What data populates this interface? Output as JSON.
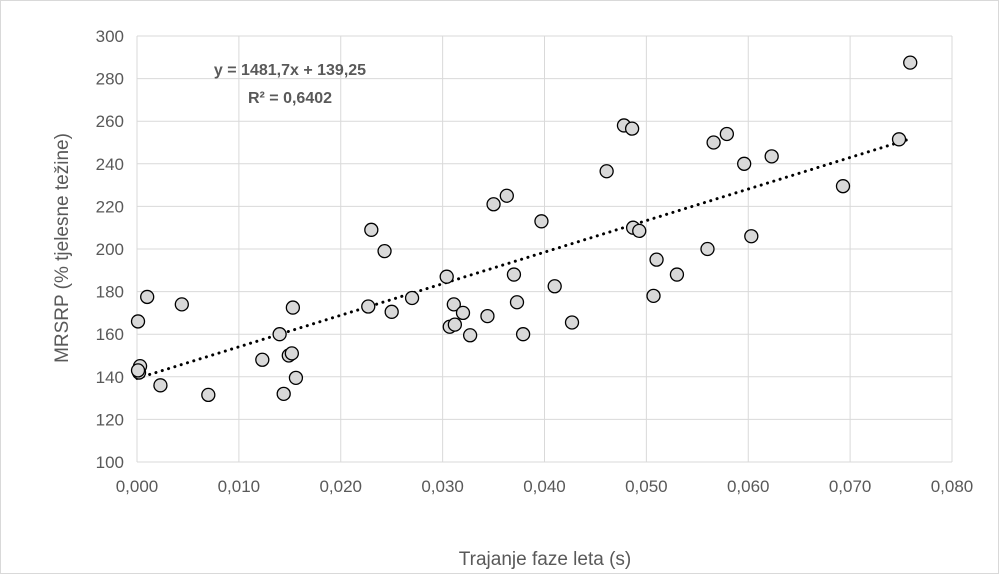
{
  "chart_data": {
    "type": "scatter",
    "xlabel": "Trajanje faze leta (s)",
    "ylabel": "MRSRP (% tjelesne težine)",
    "xlim": [
      0,
      0.08
    ],
    "ylim": [
      100,
      300
    ],
    "x_ticks": [
      "0,000",
      "0,010",
      "0,020",
      "0,030",
      "0,040",
      "0,050",
      "0,060",
      "0,070",
      "0,080"
    ],
    "y_ticks": [
      "100",
      "120",
      "140",
      "160",
      "180",
      "200",
      "220",
      "240",
      "260",
      "280",
      "300"
    ],
    "grid": true,
    "marker_fill": "#d9d9d9",
    "marker_stroke": "#000000",
    "trendline": {
      "type": "linear",
      "slope": 1481.7,
      "intercept": 139.25,
      "x_range": [
        0.0,
        0.0759
      ],
      "style": "dotted",
      "color": "#000000",
      "equation_label": "y = 1481,7x + 139,25",
      "r2_label": "R² = 0,6402"
    },
    "points": [
      [
        0.0001,
        166
      ],
      [
        0.0003,
        145
      ],
      [
        0.0002,
        142
      ],
      [
        0.0001,
        143
      ],
      [
        0.001,
        177.5
      ],
      [
        0.0023,
        136
      ],
      [
        0.0044,
        174
      ],
      [
        0.007,
        131.5
      ],
      [
        0.0123,
        148
      ],
      [
        0.014,
        160
      ],
      [
        0.0144,
        132
      ],
      [
        0.0149,
        150
      ],
      [
        0.0152,
        151
      ],
      [
        0.0153,
        172.5
      ],
      [
        0.0156,
        139.5
      ],
      [
        0.0227,
        173
      ],
      [
        0.023,
        209
      ],
      [
        0.0243,
        199
      ],
      [
        0.025,
        170.5
      ],
      [
        0.027,
        177
      ],
      [
        0.0304,
        187
      ],
      [
        0.0307,
        163.5
      ],
      [
        0.0311,
        174
      ],
      [
        0.0312,
        164.5
      ],
      [
        0.032,
        170
      ],
      [
        0.0327,
        159.5
      ],
      [
        0.0344,
        168.5
      ],
      [
        0.035,
        221
      ],
      [
        0.0363,
        225
      ],
      [
        0.037,
        188
      ],
      [
        0.0373,
        175
      ],
      [
        0.0379,
        160
      ],
      [
        0.0397,
        213
      ],
      [
        0.041,
        182.5
      ],
      [
        0.0427,
        165.5
      ],
      [
        0.0461,
        236.5
      ],
      [
        0.0478,
        258
      ],
      [
        0.0486,
        256.5
      ],
      [
        0.0487,
        210
      ],
      [
        0.0493,
        208.5
      ],
      [
        0.0507,
        178
      ],
      [
        0.051,
        195
      ],
      [
        0.053,
        188
      ],
      [
        0.056,
        200
      ],
      [
        0.0566,
        250
      ],
      [
        0.0579,
        254
      ],
      [
        0.0596,
        240
      ],
      [
        0.0603,
        206
      ],
      [
        0.0623,
        243.5
      ],
      [
        0.0693,
        229.5
      ],
      [
        0.0748,
        251.5
      ],
      [
        0.0759,
        287.5
      ]
    ]
  }
}
